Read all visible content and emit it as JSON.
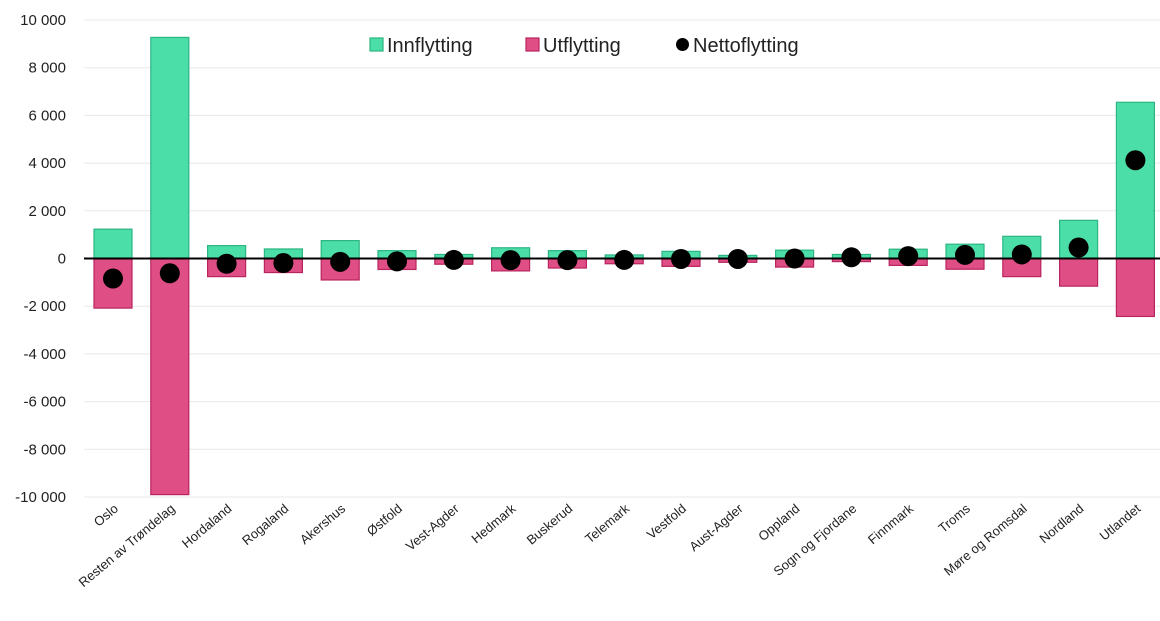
{
  "chart_data": {
    "type": "bar",
    "categories": [
      "Oslo",
      "Resten av Trøndelag",
      "Hordaland",
      "Rogaland",
      "Akershus",
      "Østfold",
      "Vest-Agder",
      "Hedmark",
      "Buskerud",
      "Telemark",
      "Vestfold",
      "Aust-Agder",
      "Oppland",
      "Sogn og Fjordane",
      "Finnmark",
      "Troms",
      "Møre og Romsdal",
      "Nordland",
      "Utlandet"
    ],
    "series": [
      {
        "name": "Innflytting",
        "kind": "bar",
        "color": "#4cdea8",
        "stroke": "#2bb583",
        "values": [
          1230,
          9270,
          540,
          400,
          750,
          330,
          170,
          450,
          330,
          150,
          300,
          130,
          350,
          170,
          390,
          600,
          930,
          1600,
          6550
        ]
      },
      {
        "name": "Utflytting",
        "kind": "bar",
        "color": "#e04e86",
        "stroke": "#b8245e",
        "values": [
          -2080,
          -9900,
          -760,
          -590,
          -900,
          -460,
          -240,
          -520,
          -400,
          -220,
          -330,
          -160,
          -360,
          -130,
          -290,
          -450,
          -760,
          -1160,
          -2430
        ]
      },
      {
        "name": "Nettoflytting",
        "kind": "marker",
        "color": "#000000",
        "values": [
          -840,
          -620,
          -220,
          -190,
          -140,
          -120,
          -60,
          -70,
          -70,
          -60,
          -20,
          -20,
          0,
          50,
          100,
          150,
          170,
          460,
          4120
        ]
      }
    ],
    "ylim": [
      -10000,
      10000
    ],
    "yticks": [
      "10 000",
      "8 000",
      "6 000",
      "4 000",
      "2 000",
      "0",
      "-2 000",
      "-4 000",
      "-6 000",
      "-8 000",
      "-10 000"
    ],
    "legend_placement": "top-center",
    "grid": true
  }
}
